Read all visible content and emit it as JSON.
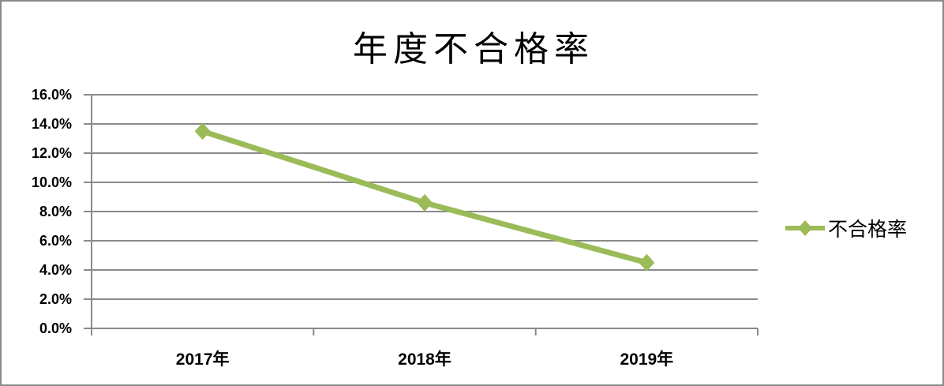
{
  "chart_data": {
    "type": "line",
    "title": "年度不合格率",
    "categories": [
      "2017年",
      "2018年",
      "2019年"
    ],
    "series": [
      {
        "name": "不合格率",
        "values": [
          13.5,
          8.6,
          4.5
        ]
      }
    ],
    "yticks": [
      16,
      14,
      12,
      10,
      8,
      6,
      4,
      2,
      0
    ],
    "ytick_labels": [
      "16.0%",
      "14.0%",
      "12.0%",
      "10.0%",
      "8.0%",
      "6.0%",
      "4.0%",
      "2.0%",
      "0.0%"
    ],
    "ylim": [
      0,
      16
    ],
    "xlabel": "",
    "ylabel": "",
    "grid": true,
    "legend": {
      "position": "right",
      "entries": [
        "不合格率"
      ]
    },
    "colors": {
      "series": "#9bbb59",
      "gridline": "#8a8a8a",
      "axis": "#8a8a8a",
      "frame_border": "#8a8a8a",
      "text": "#000000"
    }
  }
}
